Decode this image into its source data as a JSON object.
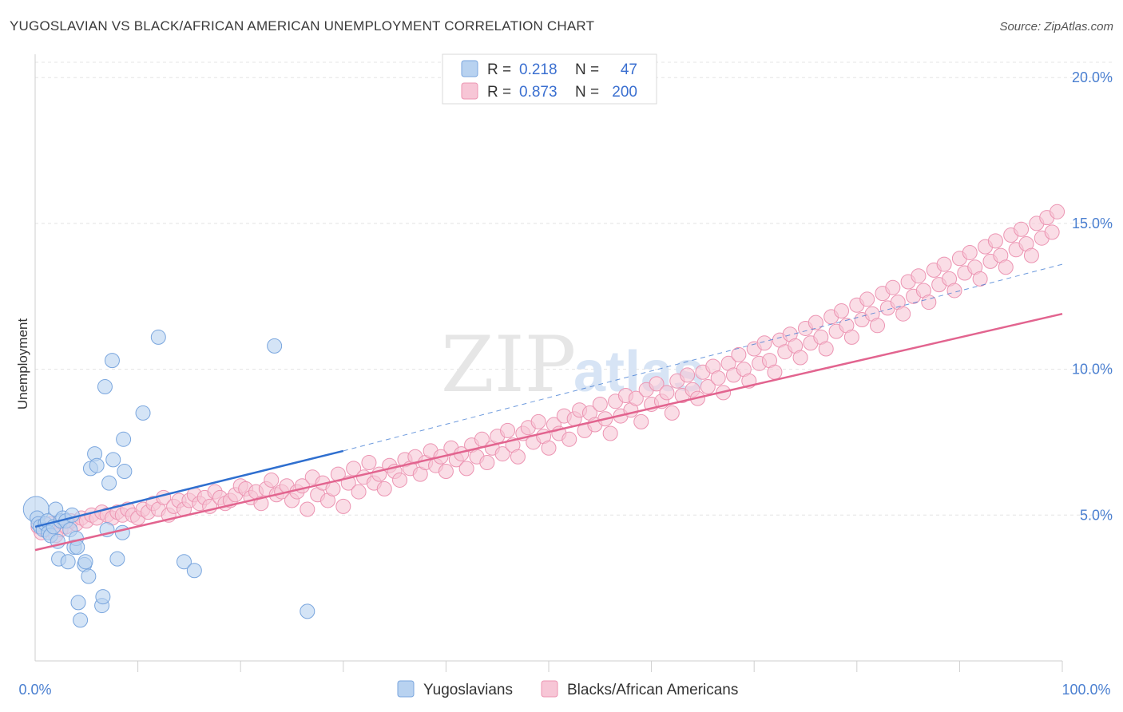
{
  "title": "YUGOSLAVIAN VS BLACK/AFRICAN AMERICAN UNEMPLOYMENT CORRELATION CHART",
  "source": "Source: ZipAtlas.com",
  "watermark": {
    "zip": "ZIP",
    "atlas": "atlas"
  },
  "legend": {
    "r_label": "R =",
    "n_label": "N =",
    "rows": [
      {
        "r": "0.218",
        "n": "47"
      },
      {
        "r": "0.873",
        "n": "200"
      }
    ]
  },
  "bottom_legend": [
    "Yugoslavians",
    "Blacks/African Americans"
  ],
  "colors": {
    "blue_fill": "#b8d2f0",
    "blue_stroke": "#7aa6de",
    "blue_line": "#2f6fcf",
    "pink_fill": "#f7c6d6",
    "pink_stroke": "#ec94b2",
    "pink_line": "#e2648f"
  },
  "chart_data": {
    "type": "scatter",
    "title": "YUGOSLAVIAN VS BLACK/AFRICAN AMERICAN UNEMPLOYMENT CORRELATION CHART",
    "xlabel": "",
    "ylabel": "Unemployment",
    "xlim": [
      0,
      100
    ],
    "ylim": [
      0,
      20.8
    ],
    "x_tick_labels": [
      "0.0%",
      "100.0%"
    ],
    "y_ticks": [
      5,
      10,
      15,
      20
    ],
    "y_tick_labels": [
      "5.0%",
      "10.0%",
      "15.0%",
      "20.0%"
    ],
    "grid": true,
    "legend_position": "top-center",
    "series": [
      {
        "name": "Yugoslavians",
        "R": 0.218,
        "N": 47,
        "trend": {
          "x0": 0,
          "y0": 4.6,
          "x1": 30,
          "y1": 7.2,
          "dashed_to_x": 100,
          "dashed_to_y": 13.6
        },
        "points": [
          [
            0.1,
            5.2
          ],
          [
            0.2,
            4.9
          ],
          [
            0.3,
            4.7
          ],
          [
            0.5,
            4.6
          ],
          [
            0.8,
            4.5
          ],
          [
            1.0,
            4.7
          ],
          [
            1.2,
            4.8
          ],
          [
            1.3,
            4.4
          ],
          [
            1.5,
            4.3
          ],
          [
            1.8,
            4.6
          ],
          [
            2.0,
            5.2
          ],
          [
            2.2,
            4.1
          ],
          [
            2.3,
            3.5
          ],
          [
            2.5,
            4.8
          ],
          [
            2.7,
            4.9
          ],
          [
            3.0,
            4.8
          ],
          [
            3.2,
            3.4
          ],
          [
            3.4,
            4.5
          ],
          [
            3.6,
            5.0
          ],
          [
            3.8,
            3.9
          ],
          [
            4.0,
            4.2
          ],
          [
            4.1,
            3.9
          ],
          [
            4.2,
            2.0
          ],
          [
            4.4,
            1.4
          ],
          [
            4.8,
            3.3
          ],
          [
            4.9,
            3.4
          ],
          [
            5.2,
            2.9
          ],
          [
            5.4,
            6.6
          ],
          [
            5.8,
            7.1
          ],
          [
            6.0,
            6.7
          ],
          [
            6.5,
            1.9
          ],
          [
            6.6,
            2.2
          ],
          [
            6.8,
            9.4
          ],
          [
            7.0,
            4.5
          ],
          [
            7.2,
            6.1
          ],
          [
            7.5,
            10.3
          ],
          [
            7.6,
            6.9
          ],
          [
            8.0,
            3.5
          ],
          [
            8.5,
            4.4
          ],
          [
            8.6,
            7.6
          ],
          [
            8.7,
            6.5
          ],
          [
            10.5,
            8.5
          ],
          [
            12.0,
            11.1
          ],
          [
            14.5,
            3.4
          ],
          [
            15.5,
            3.1
          ],
          [
            23.3,
            10.8
          ],
          [
            26.5,
            1.7
          ]
        ]
      },
      {
        "name": "Blacks/African Americans",
        "R": 0.873,
        "N": 200,
        "trend": {
          "x0": 0,
          "y0": 3.8,
          "x1": 100,
          "y1": 11.9
        },
        "points": [
          [
            0.3,
            4.6
          ],
          [
            0.6,
            4.4
          ],
          [
            1.0,
            4.5
          ],
          [
            1.5,
            4.7
          ],
          [
            2.0,
            4.3
          ],
          [
            2.5,
            4.5
          ],
          [
            3.0,
            4.6
          ],
          [
            3.5,
            4.8
          ],
          [
            4.0,
            4.7
          ],
          [
            4.5,
            4.9
          ],
          [
            5.0,
            4.8
          ],
          [
            5.5,
            5.0
          ],
          [
            6.0,
            4.9
          ],
          [
            6.5,
            5.1
          ],
          [
            7.0,
            5.0
          ],
          [
            7.5,
            4.9
          ],
          [
            8.0,
            5.1
          ],
          [
            8.5,
            5.0
          ],
          [
            9.0,
            5.2
          ],
          [
            9.5,
            5.0
          ],
          [
            10.0,
            4.9
          ],
          [
            10.5,
            5.2
          ],
          [
            11.0,
            5.1
          ],
          [
            11.5,
            5.4
          ],
          [
            12.0,
            5.2
          ],
          [
            12.5,
            5.6
          ],
          [
            13.0,
            5.0
          ],
          [
            13.5,
            5.3
          ],
          [
            14.0,
            5.5
          ],
          [
            14.5,
            5.2
          ],
          [
            15.0,
            5.5
          ],
          [
            15.5,
            5.7
          ],
          [
            16.0,
            5.4
          ],
          [
            16.5,
            5.6
          ],
          [
            17.0,
            5.3
          ],
          [
            17.5,
            5.8
          ],
          [
            18.0,
            5.6
          ],
          [
            18.5,
            5.4
          ],
          [
            19.0,
            5.5
          ],
          [
            19.5,
            5.7
          ],
          [
            20.0,
            6.0
          ],
          [
            20.5,
            5.9
          ],
          [
            21.0,
            5.6
          ],
          [
            21.5,
            5.8
          ],
          [
            22.0,
            5.4
          ],
          [
            22.5,
            5.9
          ],
          [
            23.0,
            6.2
          ],
          [
            23.5,
            5.7
          ],
          [
            24.0,
            5.8
          ],
          [
            24.5,
            6.0
          ],
          [
            25.0,
            5.5
          ],
          [
            25.5,
            5.8
          ],
          [
            26.0,
            6.0
          ],
          [
            26.5,
            5.2
          ],
          [
            27.0,
            6.3
          ],
          [
            27.5,
            5.7
          ],
          [
            28.0,
            6.1
          ],
          [
            28.5,
            5.5
          ],
          [
            29.0,
            5.9
          ],
          [
            29.5,
            6.4
          ],
          [
            30.0,
            5.3
          ],
          [
            30.5,
            6.1
          ],
          [
            31.0,
            6.6
          ],
          [
            31.5,
            5.8
          ],
          [
            32.0,
            6.3
          ],
          [
            32.5,
            6.8
          ],
          [
            33.0,
            6.1
          ],
          [
            33.5,
            6.4
          ],
          [
            34.0,
            5.9
          ],
          [
            34.5,
            6.7
          ],
          [
            35.0,
            6.5
          ],
          [
            35.5,
            6.2
          ],
          [
            36.0,
            6.9
          ],
          [
            36.5,
            6.6
          ],
          [
            37.0,
            7.0
          ],
          [
            37.5,
            6.4
          ],
          [
            38.0,
            6.8
          ],
          [
            38.5,
            7.2
          ],
          [
            39.0,
            6.7
          ],
          [
            39.5,
            7.0
          ],
          [
            40.0,
            6.5
          ],
          [
            40.5,
            7.3
          ],
          [
            41.0,
            6.9
          ],
          [
            41.5,
            7.1
          ],
          [
            42.0,
            6.6
          ],
          [
            42.5,
            7.4
          ],
          [
            43.0,
            7.0
          ],
          [
            43.5,
            7.6
          ],
          [
            44.0,
            6.8
          ],
          [
            44.5,
            7.3
          ],
          [
            45.0,
            7.7
          ],
          [
            45.5,
            7.1
          ],
          [
            46.0,
            7.9
          ],
          [
            46.5,
            7.4
          ],
          [
            47.0,
            7.0
          ],
          [
            47.5,
            7.8
          ],
          [
            48.0,
            8.0
          ],
          [
            48.5,
            7.5
          ],
          [
            49.0,
            8.2
          ],
          [
            49.5,
            7.7
          ],
          [
            50.0,
            7.3
          ],
          [
            50.5,
            8.1
          ],
          [
            51.0,
            7.8
          ],
          [
            51.5,
            8.4
          ],
          [
            52.0,
            7.6
          ],
          [
            52.5,
            8.3
          ],
          [
            53.0,
            8.6
          ],
          [
            53.5,
            7.9
          ],
          [
            54.0,
            8.5
          ],
          [
            54.5,
            8.1
          ],
          [
            55.0,
            8.8
          ],
          [
            55.5,
            8.3
          ],
          [
            56.0,
            7.8
          ],
          [
            56.5,
            8.9
          ],
          [
            57.0,
            8.4
          ],
          [
            57.5,
            9.1
          ],
          [
            58.0,
            8.6
          ],
          [
            58.5,
            9.0
          ],
          [
            59.0,
            8.2
          ],
          [
            59.5,
            9.3
          ],
          [
            60.0,
            8.8
          ],
          [
            60.5,
            9.5
          ],
          [
            61.0,
            8.9
          ],
          [
            61.5,
            9.2
          ],
          [
            62.0,
            8.5
          ],
          [
            62.5,
            9.6
          ],
          [
            63.0,
            9.1
          ],
          [
            63.5,
            9.8
          ],
          [
            64.0,
            9.3
          ],
          [
            64.5,
            9.0
          ],
          [
            65.0,
            9.9
          ],
          [
            65.5,
            9.4
          ],
          [
            66.0,
            10.1
          ],
          [
            66.5,
            9.7
          ],
          [
            67.0,
            9.2
          ],
          [
            67.5,
            10.2
          ],
          [
            68.0,
            9.8
          ],
          [
            68.5,
            10.5
          ],
          [
            69.0,
            10.0
          ],
          [
            69.5,
            9.6
          ],
          [
            70.0,
            10.7
          ],
          [
            70.5,
            10.2
          ],
          [
            71.0,
            10.9
          ],
          [
            71.5,
            10.3
          ],
          [
            72.0,
            9.9
          ],
          [
            72.5,
            11.0
          ],
          [
            73.0,
            10.6
          ],
          [
            73.5,
            11.2
          ],
          [
            74.0,
            10.8
          ],
          [
            74.5,
            10.4
          ],
          [
            75.0,
            11.4
          ],
          [
            75.5,
            10.9
          ],
          [
            76.0,
            11.6
          ],
          [
            76.5,
            11.1
          ],
          [
            77.0,
            10.7
          ],
          [
            77.5,
            11.8
          ],
          [
            78.0,
            11.3
          ],
          [
            78.5,
            12.0
          ],
          [
            79.0,
            11.5
          ],
          [
            79.5,
            11.1
          ],
          [
            80.0,
            12.2
          ],
          [
            80.5,
            11.7
          ],
          [
            81.0,
            12.4
          ],
          [
            81.5,
            11.9
          ],
          [
            82.0,
            11.5
          ],
          [
            82.5,
            12.6
          ],
          [
            83.0,
            12.1
          ],
          [
            83.5,
            12.8
          ],
          [
            84.0,
            12.3
          ],
          [
            84.5,
            11.9
          ],
          [
            85.0,
            13.0
          ],
          [
            85.5,
            12.5
          ],
          [
            86.0,
            13.2
          ],
          [
            86.5,
            12.7
          ],
          [
            87.0,
            12.3
          ],
          [
            87.5,
            13.4
          ],
          [
            88.0,
            12.9
          ],
          [
            88.5,
            13.6
          ],
          [
            89.0,
            13.1
          ],
          [
            89.5,
            12.7
          ],
          [
            90.0,
            13.8
          ],
          [
            90.5,
            13.3
          ],
          [
            91.0,
            14.0
          ],
          [
            91.5,
            13.5
          ],
          [
            92.0,
            13.1
          ],
          [
            92.5,
            14.2
          ],
          [
            93.0,
            13.7
          ],
          [
            93.5,
            14.4
          ],
          [
            94.0,
            13.9
          ],
          [
            94.5,
            13.5
          ],
          [
            95.0,
            14.6
          ],
          [
            95.5,
            14.1
          ],
          [
            96.0,
            14.8
          ],
          [
            96.5,
            14.3
          ],
          [
            97.0,
            13.9
          ],
          [
            97.5,
            15.0
          ],
          [
            98.0,
            14.5
          ],
          [
            98.5,
            15.2
          ],
          [
            99.0,
            14.7
          ],
          [
            99.5,
            15.4
          ]
        ]
      }
    ]
  }
}
